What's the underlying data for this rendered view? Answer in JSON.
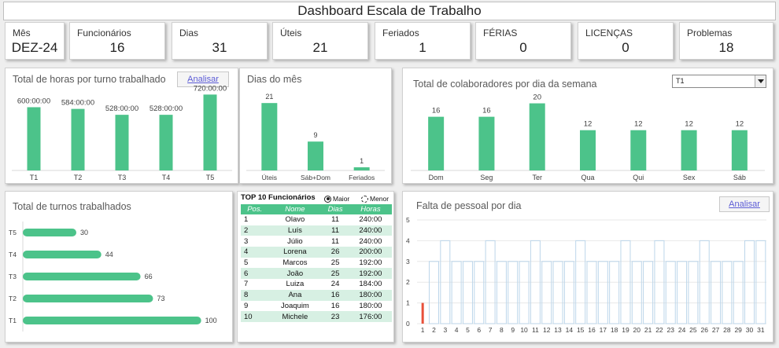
{
  "title": "Dashboard Escala de Trabalho",
  "kpis": [
    {
      "label": "Mês",
      "value": "DEZ-24"
    },
    {
      "label": "Funcionários",
      "value": "16"
    },
    {
      "label": "Dias",
      "value": "31"
    },
    {
      "label": "Úteis",
      "value": "21"
    },
    {
      "label": "Feriados",
      "value": "1"
    },
    {
      "label": "FÉRIAS",
      "value": "0"
    },
    {
      "label": "LICENÇAS",
      "value": "0"
    },
    {
      "label": "Problemas",
      "value": "18"
    }
  ],
  "colors": {
    "accent": "#4cc38a",
    "alert": "#e8503a",
    "gridline": "#bcd6ea"
  },
  "hours_panel": {
    "title": "Total de horas por turno trabalhado",
    "button": "Analisar"
  },
  "days_panel": {
    "title": "Dias do mês"
  },
  "weekday_panel": {
    "title": "Total de colaboradores por dia da semana",
    "dropdown_value": "T1"
  },
  "shifts_panel": {
    "title": "Total de turnos trabalhados"
  },
  "top10": {
    "title": "TOP 10 Funcionários",
    "option_max": "Maior",
    "option_min": "Menor",
    "selected": "Maior",
    "columns": [
      "Pos.",
      "Nome",
      "Dias",
      "Horas"
    ],
    "rows": [
      [
        "1",
        "Olavo",
        "11",
        "240:00"
      ],
      [
        "2",
        "Luís",
        "11",
        "240:00"
      ],
      [
        "3",
        "Júlio",
        "11",
        "240:00"
      ],
      [
        "4",
        "Lorena",
        "26",
        "200:00"
      ],
      [
        "5",
        "Marcos",
        "25",
        "192:00"
      ],
      [
        "6",
        "João",
        "25",
        "192:00"
      ],
      [
        "7",
        "Luiza",
        "24",
        "184:00"
      ],
      [
        "8",
        "Ana",
        "16",
        "180:00"
      ],
      [
        "9",
        "Joaquim",
        "16",
        "180:00"
      ],
      [
        "10",
        "Michele",
        "23",
        "176:00"
      ]
    ]
  },
  "shortage_panel": {
    "title": "Falta de pessoal por dia",
    "button": "Analisar"
  },
  "chart_data": [
    {
      "type": "bar",
      "title": "Total de horas por turno trabalhado",
      "categories": [
        "T1",
        "T2",
        "T3",
        "T4",
        "T5"
      ],
      "values": [
        600,
        584,
        528,
        528,
        720
      ],
      "labels": [
        "600:00:00",
        "584:00:00",
        "528:00:00",
        "528:00:00",
        "720:00:00"
      ],
      "ylim": [
        0,
        760
      ]
    },
    {
      "type": "bar",
      "title": "Dias do mês",
      "categories": [
        "Úteis",
        "Sáb+Dom",
        "Feriados"
      ],
      "values": [
        21,
        9,
        1
      ],
      "ylim": [
        0,
        23
      ]
    },
    {
      "type": "bar",
      "title": "Total de colaboradores por dia da semana",
      "categories": [
        "Dom",
        "Seg",
        "Ter",
        "Qua",
        "Qui",
        "Sex",
        "Sáb"
      ],
      "values": [
        16,
        16,
        20,
        12,
        12,
        12,
        12
      ],
      "ylim": [
        0,
        22
      ]
    },
    {
      "type": "bar",
      "orientation": "horizontal",
      "title": "Total de turnos trabalhados",
      "categories": [
        "T5",
        "T4",
        "T3",
        "T2",
        "T1"
      ],
      "values": [
        30,
        44,
        66,
        73,
        100
      ],
      "xlim": [
        0,
        105
      ]
    },
    {
      "type": "bar",
      "title": "Falta de pessoal por dia",
      "categories": [
        "1",
        "2",
        "3",
        "4",
        "5",
        "6",
        "7",
        "8",
        "9",
        "10",
        "11",
        "12",
        "13",
        "14",
        "15",
        "16",
        "17",
        "18",
        "19",
        "20",
        "21",
        "22",
        "23",
        "24",
        "25",
        "26",
        "27",
        "28",
        "29",
        "30",
        "31"
      ],
      "values": [
        1,
        0,
        0,
        0,
        0,
        0,
        0,
        0,
        0,
        0,
        0,
        0,
        0,
        0,
        0,
        0,
        0,
        0,
        0,
        0,
        0,
        0,
        0,
        0,
        0,
        0,
        0,
        0,
        0,
        0,
        0
      ],
      "outline_values": [
        0,
        3,
        4,
        3,
        3,
        3,
        4,
        3,
        3,
        3,
        4,
        3,
        3,
        3,
        4,
        3,
        3,
        3,
        4,
        3,
        3,
        4,
        3,
        3,
        3,
        4,
        3,
        3,
        3,
        4,
        4
      ],
      "yticks": [
        "0",
        "1",
        "2",
        "3",
        "4",
        "5"
      ],
      "ylim": [
        0,
        5
      ]
    }
  ]
}
